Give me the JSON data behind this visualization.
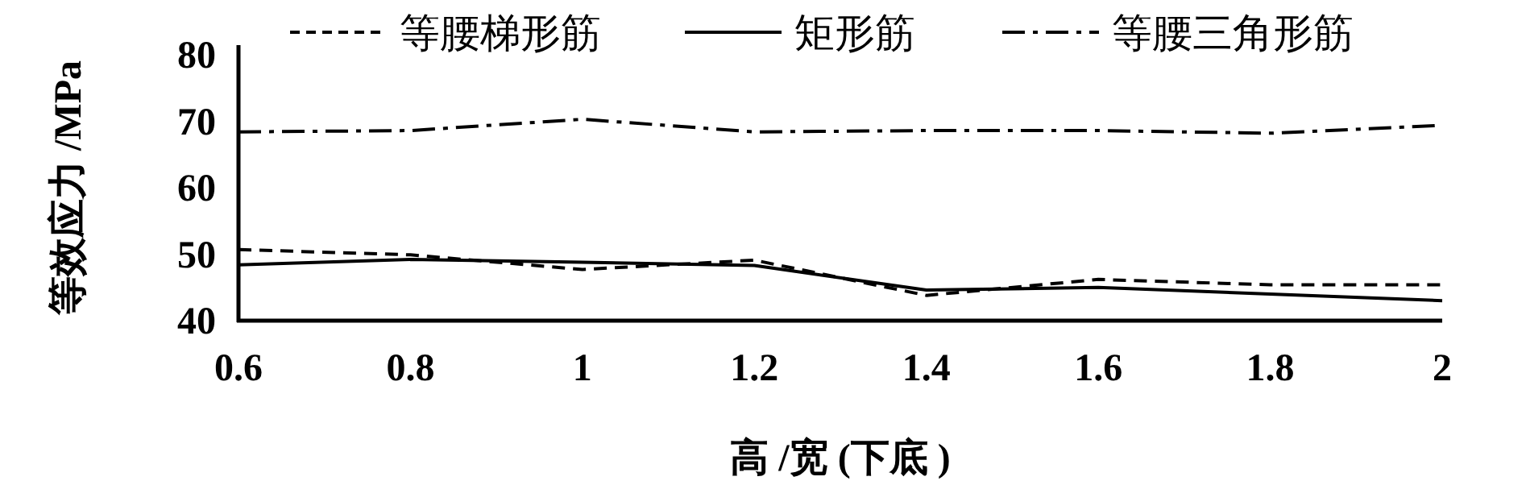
{
  "chart_data": {
    "type": "line",
    "xlabel": "高 /宽 (下底 )",
    "ylabel": "等效应力 /MPa",
    "x": [
      0.6,
      0.8,
      1,
      1.2,
      1.4,
      1.6,
      1.8,
      2
    ],
    "xlim": [
      0.6,
      2
    ],
    "xticks": [
      0.6,
      0.8,
      1,
      1.2,
      1.4,
      1.6,
      1.8,
      2
    ],
    "ylim": [
      40,
      80
    ],
    "yticks": [
      40,
      50,
      60,
      70,
      80
    ],
    "grid": false,
    "legend": "top",
    "marker": "none",
    "series": [
      {
        "name": "等腰梯形筋",
        "color": "#000000",
        "line_style": "dashed",
        "values": [
          50.7,
          49.9,
          47.7,
          49.1,
          43.8,
          46.2,
          45.4,
          45.4
        ]
      },
      {
        "name": "矩形筋",
        "color": "#000000",
        "line_style": "solid",
        "values": [
          48.4,
          49.2,
          48.8,
          48.3,
          44.6,
          45.0,
          44.0,
          43.0
        ]
      },
      {
        "name": "等腰三角形筋",
        "color": "#000000",
        "line_style": "dashdot",
        "values": [
          68.4,
          68.6,
          70.3,
          68.4,
          68.6,
          68.6,
          68.2,
          69.4
        ]
      }
    ]
  }
}
